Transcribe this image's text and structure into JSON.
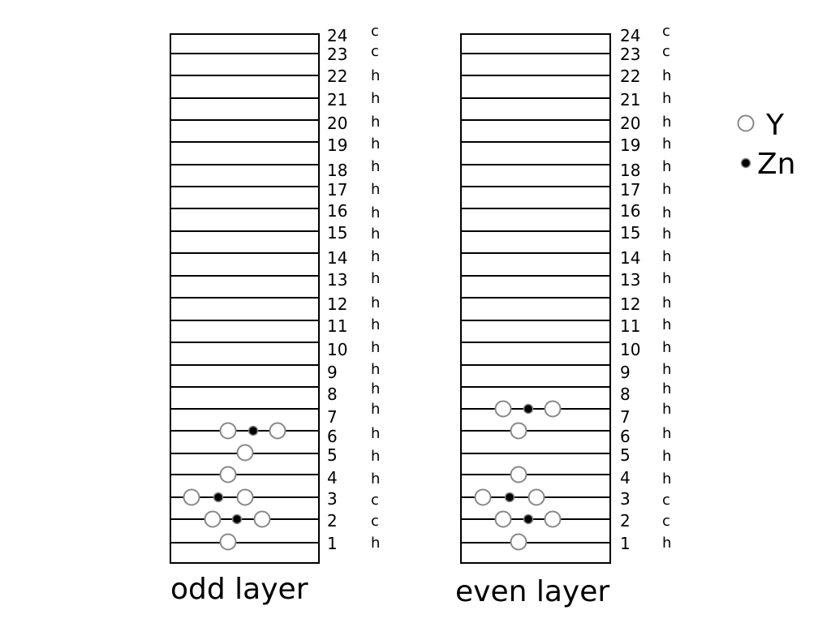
{
  "panels": [
    {
      "caption": "odd layer",
      "layers": [
        {
          "num": "1",
          "stack": "h",
          "atoms": [
            "Y"
          ]
        },
        {
          "num": "2",
          "stack": "c",
          "atoms": [
            "Y",
            "Zn",
            "Y"
          ]
        },
        {
          "num": "3",
          "stack": "c",
          "atoms": [
            "Y",
            "Zn",
            "Y"
          ]
        },
        {
          "num": "4",
          "stack": "h",
          "atoms": [
            "Y"
          ]
        },
        {
          "num": "5",
          "stack": "h",
          "atoms": [
            "Y"
          ]
        },
        {
          "num": "6",
          "stack": "h",
          "atoms": [
            "Y",
            "Zn",
            "Y"
          ]
        },
        {
          "num": "7",
          "stack": "h",
          "atoms": []
        },
        {
          "num": "8",
          "stack": "h",
          "atoms": []
        },
        {
          "num": "9",
          "stack": "h",
          "atoms": []
        },
        {
          "num": "10",
          "stack": "h",
          "atoms": []
        },
        {
          "num": "11",
          "stack": "h",
          "atoms": []
        },
        {
          "num": "12",
          "stack": "h",
          "atoms": []
        },
        {
          "num": "13",
          "stack": "h",
          "atoms": []
        },
        {
          "num": "14",
          "stack": "h",
          "atoms": []
        },
        {
          "num": "15",
          "stack": "h",
          "atoms": []
        },
        {
          "num": "16",
          "stack": "h",
          "atoms": []
        },
        {
          "num": "17",
          "stack": "h",
          "atoms": []
        },
        {
          "num": "18",
          "stack": "h",
          "atoms": []
        },
        {
          "num": "19",
          "stack": "h",
          "atoms": []
        },
        {
          "num": "20",
          "stack": "h",
          "atoms": []
        },
        {
          "num": "21",
          "stack": "h",
          "atoms": []
        },
        {
          "num": "22",
          "stack": "h",
          "atoms": []
        },
        {
          "num": "23",
          "stack": "c",
          "atoms": []
        },
        {
          "num": "24",
          "stack": "c",
          "atoms": []
        }
      ]
    },
    {
      "caption": "even layer",
      "layers": [
        {
          "num": "1",
          "stack": "h",
          "atoms": [
            "Y"
          ]
        },
        {
          "num": "2",
          "stack": "c",
          "atoms": [
            "Y",
            "Zn",
            "Y"
          ]
        },
        {
          "num": "3",
          "stack": "c",
          "atoms": [
            "Y",
            "Zn",
            "Y"
          ]
        },
        {
          "num": "4",
          "stack": "h",
          "atoms": [
            "Y"
          ]
        },
        {
          "num": "5",
          "stack": "h",
          "atoms": []
        },
        {
          "num": "6",
          "stack": "h",
          "atoms": [
            "Y"
          ]
        },
        {
          "num": "7",
          "stack": "h",
          "atoms": [
            "Y",
            "Zn",
            "Y"
          ]
        },
        {
          "num": "8",
          "stack": "h",
          "atoms": []
        },
        {
          "num": "9",
          "stack": "h",
          "atoms": []
        },
        {
          "num": "10",
          "stack": "h",
          "atoms": []
        },
        {
          "num": "11",
          "stack": "h",
          "atoms": []
        },
        {
          "num": "12",
          "stack": "h",
          "atoms": []
        },
        {
          "num": "13",
          "stack": "h",
          "atoms": []
        },
        {
          "num": "14",
          "stack": "h",
          "atoms": []
        },
        {
          "num": "15",
          "stack": "h",
          "atoms": []
        },
        {
          "num": "16",
          "stack": "h",
          "atoms": []
        },
        {
          "num": "17",
          "stack": "h",
          "atoms": []
        },
        {
          "num": "18",
          "stack": "h",
          "atoms": []
        },
        {
          "num": "19",
          "stack": "h",
          "atoms": []
        },
        {
          "num": "20",
          "stack": "h",
          "atoms": []
        },
        {
          "num": "21",
          "stack": "h",
          "atoms": []
        },
        {
          "num": "22",
          "stack": "h",
          "atoms": []
        },
        {
          "num": "23",
          "stack": "c",
          "atoms": []
        },
        {
          "num": "24",
          "stack": "c",
          "atoms": []
        }
      ]
    }
  ],
  "legend": {
    "y_label": "Y",
    "zn_label": "Zn"
  }
}
